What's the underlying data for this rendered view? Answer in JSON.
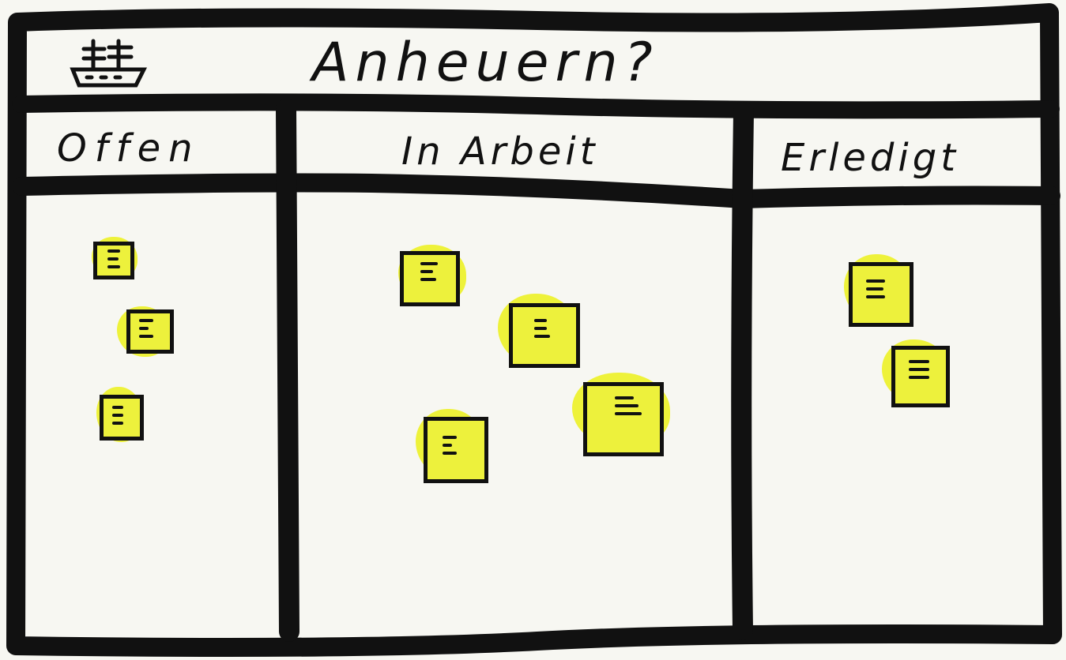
{
  "board": {
    "title": "Anheuern?",
    "icon": "ship-icon",
    "columns": [
      {
        "name": "Offen",
        "cards": 3
      },
      {
        "name": "In Arbeit",
        "cards": 4
      },
      {
        "name": "Erledigt",
        "cards": 2
      }
    ]
  },
  "colors": {
    "ink": "#111111",
    "paper": "#f7f7f2",
    "sticky": "#edf13c"
  }
}
